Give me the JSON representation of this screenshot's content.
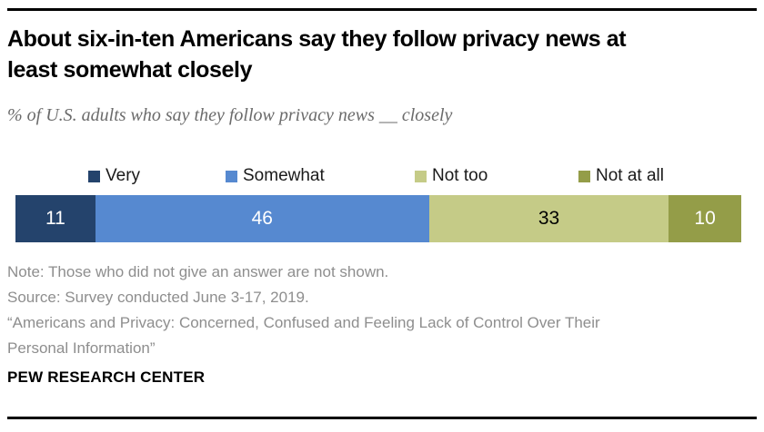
{
  "header": {
    "title": "About six-in-ten Americans say they follow privacy news at least somewhat closely",
    "subtitle": "% of U.S. adults who say they follow privacy news __ closely"
  },
  "chart_data": {
    "type": "bar",
    "variant": "horizontal-stacked",
    "title": "About six-in-ten Americans say they follow privacy news at least somewhat closely",
    "categories": [
      "Very",
      "Somewhat",
      "Not too",
      "Not at all"
    ],
    "values": [
      11,
      46,
      33,
      10
    ],
    "unit": "% of U.S. adults",
    "xlim": [
      0,
      100
    ],
    "grid": false,
    "legend_position": "top",
    "colors": [
      "#24436c",
      "#5689d0",
      "#c5cb87",
      "#949d48"
    ],
    "value_label_colors": [
      "#ffffff",
      "#ffffff",
      "#000000",
      "#ffffff"
    ]
  },
  "footer": {
    "note": "Note: Those who did not give an answer are not shown.",
    "source": "Source: Survey conducted June 3-17, 2019.",
    "citation": "“Americans and Privacy: Concerned, Confused and Feeling Lack of Control Over Their Personal Information”",
    "brand": "PEW RESEARCH CENTER"
  }
}
